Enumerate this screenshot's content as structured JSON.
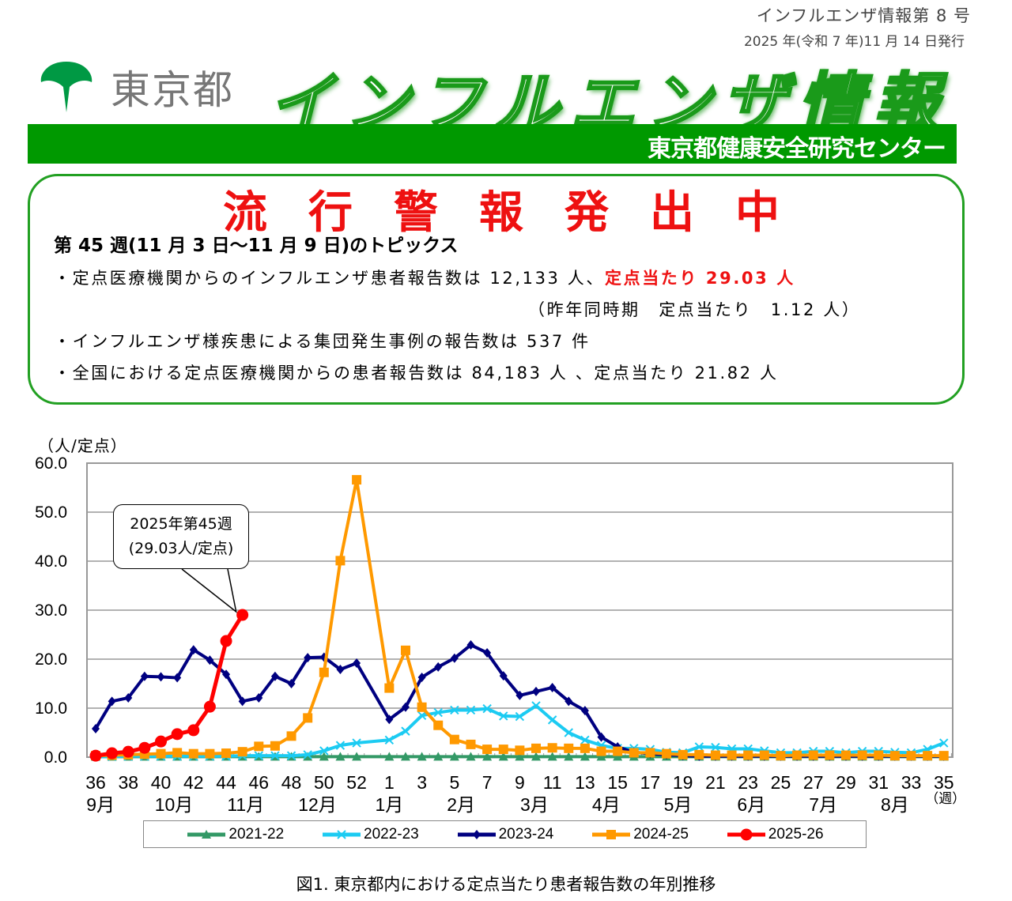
{
  "header": {
    "issue": "インフルエンザ情報第 8 号",
    "date": "2025 年(令和 7 年)11 月 14 日発行",
    "logo_text": "東京都",
    "title": "インフルエンザ情報",
    "center_name": "東京都健康安全研究センター"
  },
  "topics": {
    "alert": "流行警報発出中",
    "heading": "第 45 週(11 月 3 日～11 月 9 日)のトピックス",
    "line1_prefix": "・定点医療機関からのインフルエンザ患者報告数は 12,133 人、",
    "line1_highlight": "定点当たり 29.03 人",
    "line1_note": "（昨年同時期　定点当たり　1.12 人）",
    "line2": "・インフルエンザ様疾患による集団発生事例の報告数は 537 件",
    "line3": "・全国における定点医療機関からの患者報告数は 84,183 人 、定点当たり 21.82 人"
  },
  "colors": {
    "brand_green": "#009900",
    "alert_red": "#ee1111"
  },
  "chart_data": {
    "type": "line",
    "title": "図1. 東京都内における定点当たり患者報告数の年別推移",
    "ylabel": "（人/定点）",
    "xlabel": "（週）",
    "ylim": [
      0,
      60
    ],
    "yticks": [
      "0.0",
      "10.0",
      "20.0",
      "30.0",
      "40.0",
      "50.0",
      "60.0"
    ],
    "weeks": [
      36,
      37,
      38,
      39,
      40,
      41,
      42,
      43,
      44,
      45,
      46,
      47,
      48,
      49,
      50,
      51,
      52,
      53,
      1,
      2,
      3,
      4,
      5,
      6,
      7,
      8,
      9,
      10,
      11,
      12,
      13,
      14,
      15,
      16,
      17,
      18,
      19,
      20,
      21,
      22,
      23,
      24,
      25,
      26,
      27,
      28,
      29,
      30,
      31,
      32,
      33,
      34,
      35
    ],
    "xtick_labels": [
      "36",
      "38",
      "40",
      "42",
      "44",
      "46",
      "48",
      "50",
      "52",
      "1",
      "3",
      "5",
      "7",
      "9",
      "11",
      "13",
      "15",
      "17",
      "19",
      "21",
      "23",
      "25",
      "27",
      "29",
      "31",
      "33",
      "35"
    ],
    "month_labels": [
      "9月",
      "10月",
      "11月",
      "12月",
      "1月",
      "2月",
      "3月",
      "4月",
      "5月",
      "6月",
      "7月",
      "8月"
    ],
    "annotation": {
      "line1": "2025年第45週",
      "line2": "(29.03人/定点)",
      "week": 45,
      "value": 29.03
    },
    "series": [
      {
        "name": "2021-22",
        "color": "#339966",
        "marker": "triangle",
        "values": [
          0.1,
          0.1,
          0.1,
          0.1,
          0.1,
          0.1,
          0.1,
          0.1,
          0.1,
          0.1,
          0.1,
          0.1,
          0.1,
          0.1,
          0.1,
          0.1,
          0.1,
          null,
          0.1,
          0.1,
          0.1,
          0.1,
          0.1,
          0.1,
          0.1,
          0.1,
          0.1,
          0.1,
          0.1,
          0.1,
          0.1,
          0.1,
          0.1,
          0.1,
          0.1,
          0.1,
          0.1,
          0.1,
          0.1,
          0.1,
          0.1,
          0.1,
          0.1,
          0.1,
          0.1,
          0.1,
          0.1,
          0.1,
          0.1,
          0.1,
          0.1,
          0.1,
          0.1
        ]
      },
      {
        "name": "2022-23",
        "color": "#1ccbf2",
        "marker": "x",
        "values": [
          0.1,
          0.1,
          0.2,
          0.2,
          0.2,
          0.2,
          0.2,
          0.2,
          0.2,
          0.3,
          0.3,
          0.3,
          0.3,
          0.5,
          1.3,
          2.4,
          2.9,
          null,
          3.5,
          5.3,
          8.5,
          9.1,
          9.6,
          9.6,
          9.9,
          8.4,
          8.3,
          10.5,
          7.6,
          5.0,
          3.5,
          2.4,
          1.8,
          1.8,
          1.6,
          1.0,
          0.9,
          2.1,
          2.0,
          1.7,
          1.7,
          1.3,
          0.9,
          0.9,
          1.2,
          1.2,
          0.9,
          1.2,
          1.2,
          1.0,
          0.9,
          1.6,
          2.9
        ]
      },
      {
        "name": "2023-24",
        "color": "#000080",
        "marker": "diamond",
        "values": [
          5.8,
          11.4,
          12.1,
          16.5,
          16.4,
          16.2,
          21.9,
          19.8,
          16.9,
          11.4,
          12.1,
          16.5,
          15.0,
          20.3,
          20.4,
          17.9,
          19.2,
          null,
          7.7,
          10.2,
          16.3,
          18.4,
          20.2,
          22.9,
          21.3,
          16.6,
          12.6,
          13.4,
          14.2,
          11.4,
          9.5,
          4.1,
          2.1,
          1.0,
          0.7,
          0.5,
          0.3,
          0.2,
          0.2,
          0.2,
          0.2,
          0.2,
          0.2,
          0.2,
          0.2,
          0.2,
          0.2,
          0.2,
          0.2,
          0.2,
          0.2,
          0.2,
          0.2
        ]
      },
      {
        "name": "2024-25",
        "color": "#ff9900",
        "marker": "square",
        "values": [
          0.3,
          0.4,
          0.5,
          0.6,
          0.7,
          0.9,
          0.7,
          0.7,
          0.8,
          1.1,
          2.2,
          2.3,
          4.3,
          8.0,
          17.3,
          40.1,
          56.6,
          null,
          14.1,
          21.8,
          10.2,
          6.5,
          3.6,
          2.6,
          1.6,
          1.6,
          1.4,
          1.8,
          1.9,
          1.8,
          1.8,
          1.2,
          1.2,
          0.9,
          0.9,
          0.7,
          0.5,
          0.5,
          0.4,
          0.4,
          0.4,
          0.4,
          0.3,
          0.4,
          0.4,
          0.4,
          0.4,
          0.4,
          0.4,
          0.3,
          0.3,
          0.3,
          0.3
        ]
      },
      {
        "name": "2025-26",
        "color": "#ff0000",
        "marker": "circle",
        "values": [
          0.3,
          0.8,
          1.1,
          1.9,
          3.2,
          4.7,
          5.5,
          10.3,
          23.7,
          29.03
        ]
      }
    ],
    "legend_position": "bottom",
    "grid": true
  }
}
